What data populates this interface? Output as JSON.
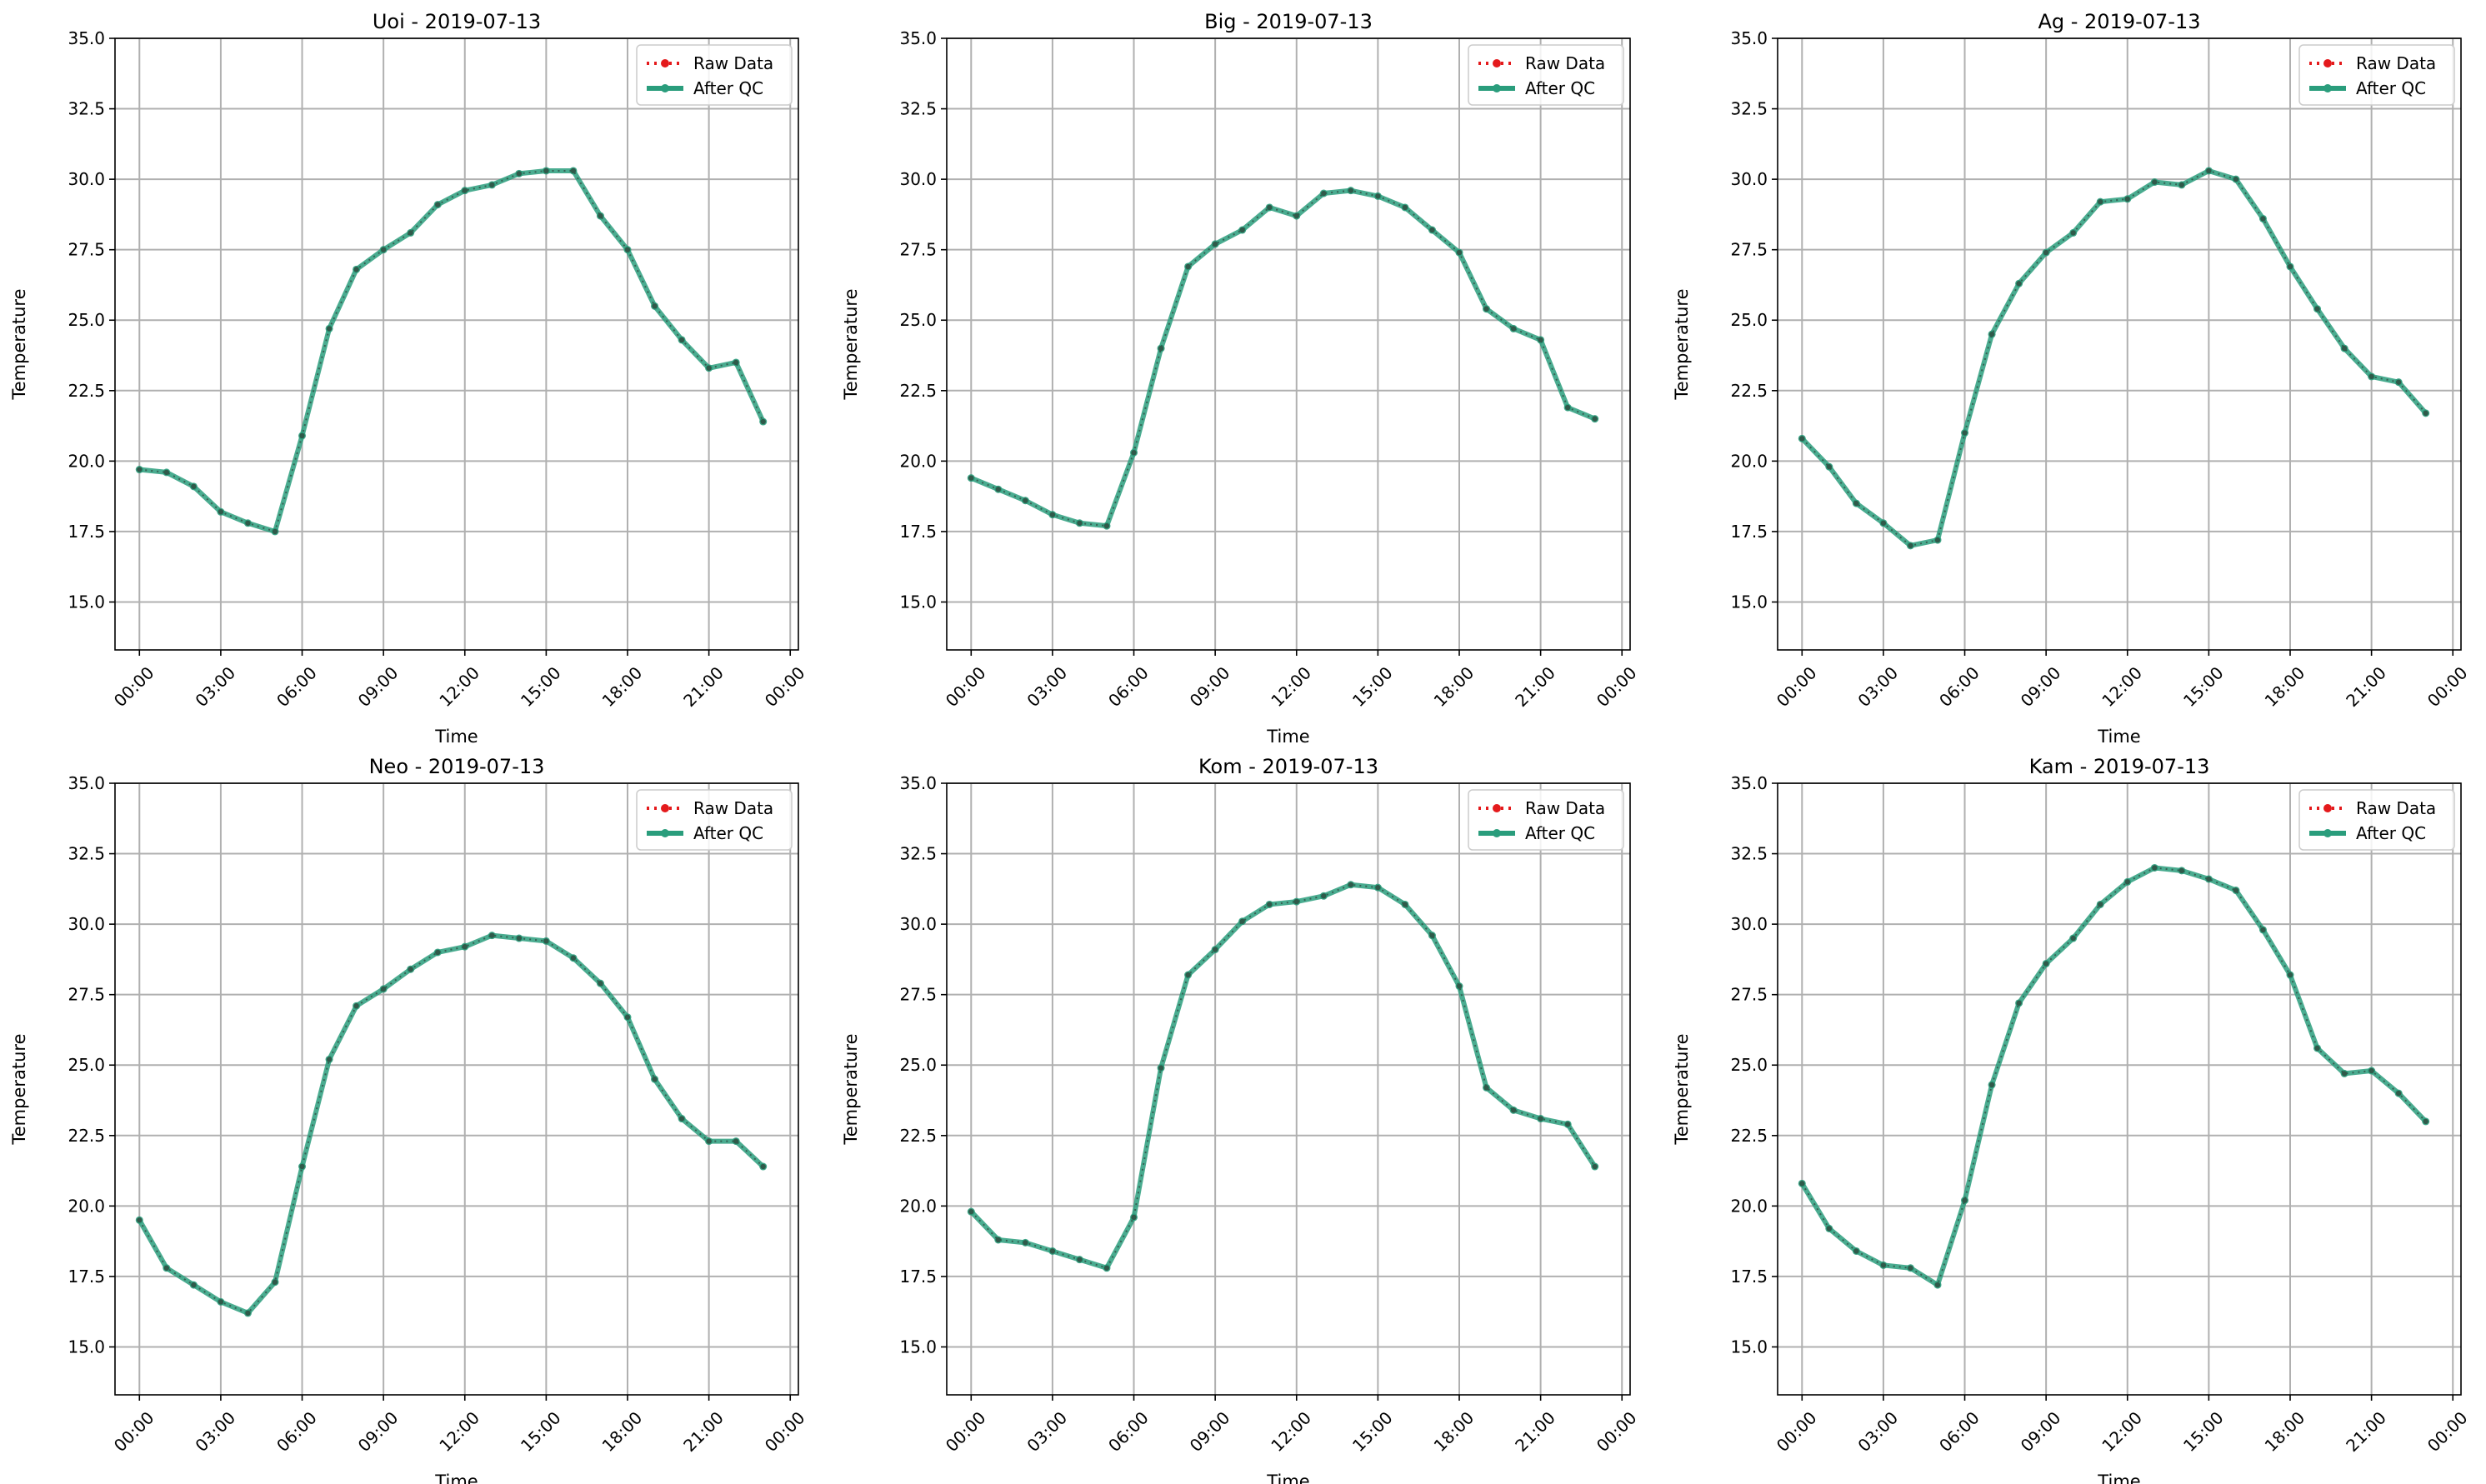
{
  "figure": {
    "legend_raw": "Raw Data",
    "legend_qc": "After QC",
    "raw_color": "#e41a1c",
    "qc_color": "#2a9d7c",
    "xlabel": "Time",
    "ylabel": "Temperature"
  },
  "chart_data": [
    {
      "type": "line",
      "title": "Uoi - 2019-07-13",
      "xlabel": "Time",
      "ylabel": "Temperature",
      "ylim": [
        13.3,
        35.0
      ],
      "yticks": [
        15.0,
        17.5,
        20.0,
        22.5,
        25.0,
        27.5,
        30.0,
        32.5,
        35.0
      ],
      "xticks": [
        "00:00",
        "03:00",
        "06:00",
        "09:00",
        "12:00",
        "15:00",
        "18:00",
        "21:00",
        "00:00"
      ],
      "grid": true,
      "legend": "top-right",
      "x_hours": [
        0,
        1,
        2,
        3,
        4,
        5,
        6,
        7,
        8,
        9,
        10,
        11,
        12,
        13,
        14,
        15,
        16,
        17,
        18,
        19,
        20,
        21,
        22,
        23
      ],
      "series": [
        {
          "name": "Raw Data",
          "values": [
            19.7,
            19.6,
            19.1,
            18.2,
            17.8,
            17.5,
            20.9,
            24.7,
            26.8,
            27.5,
            28.1,
            29.1,
            29.6,
            29.8,
            30.2,
            30.3,
            30.3,
            28.7,
            27.5,
            25.5,
            24.3,
            23.3,
            23.5,
            21.4
          ]
        },
        {
          "name": "After QC",
          "values": [
            19.7,
            19.6,
            19.1,
            18.2,
            17.8,
            17.5,
            20.9,
            24.7,
            26.8,
            27.5,
            28.1,
            29.1,
            29.6,
            29.8,
            30.2,
            30.3,
            30.3,
            28.7,
            27.5,
            25.5,
            24.3,
            23.3,
            23.5,
            21.4
          ]
        }
      ]
    },
    {
      "type": "line",
      "title": "Big - 2019-07-13",
      "xlabel": "Time",
      "ylabel": "Temperature",
      "ylim": [
        13.3,
        35.0
      ],
      "yticks": [
        15.0,
        17.5,
        20.0,
        22.5,
        25.0,
        27.5,
        30.0,
        32.5,
        35.0
      ],
      "xticks": [
        "00:00",
        "03:00",
        "06:00",
        "09:00",
        "12:00",
        "15:00",
        "18:00",
        "21:00",
        "00:00"
      ],
      "grid": true,
      "legend": "top-right",
      "x_hours": [
        0,
        1,
        2,
        3,
        4,
        5,
        6,
        7,
        8,
        9,
        10,
        11,
        12,
        13,
        14,
        15,
        16,
        17,
        18,
        19,
        20,
        21,
        22,
        23
      ],
      "series": [
        {
          "name": "Raw Data",
          "values": [
            19.4,
            19.0,
            18.6,
            18.1,
            17.8,
            17.7,
            20.3,
            24.0,
            26.9,
            27.7,
            28.2,
            29.0,
            28.7,
            29.5,
            29.6,
            29.4,
            29.0,
            28.2,
            27.4,
            25.4,
            24.7,
            24.3,
            21.9,
            21.5
          ]
        },
        {
          "name": "After QC",
          "values": [
            19.4,
            19.0,
            18.6,
            18.1,
            17.8,
            17.7,
            20.3,
            24.0,
            26.9,
            27.7,
            28.2,
            29.0,
            28.7,
            29.5,
            29.6,
            29.4,
            29.0,
            28.2,
            27.4,
            25.4,
            24.7,
            24.3,
            21.9,
            21.5
          ]
        }
      ]
    },
    {
      "type": "line",
      "title": "Ag - 2019-07-13",
      "xlabel": "Time",
      "ylabel": "Temperature",
      "ylim": [
        13.3,
        35.0
      ],
      "yticks": [
        15.0,
        17.5,
        20.0,
        22.5,
        25.0,
        27.5,
        30.0,
        32.5,
        35.0
      ],
      "xticks": [
        "00:00",
        "03:00",
        "06:00",
        "09:00",
        "12:00",
        "15:00",
        "18:00",
        "21:00",
        "00:00"
      ],
      "grid": true,
      "legend": "top-right",
      "x_hours": [
        0,
        1,
        2,
        3,
        4,
        5,
        6,
        7,
        8,
        9,
        10,
        11,
        12,
        13,
        14,
        15,
        16,
        17,
        18,
        19,
        20,
        21,
        22,
        23
      ],
      "series": [
        {
          "name": "Raw Data",
          "values": [
            20.8,
            19.8,
            18.5,
            17.8,
            17.0,
            17.2,
            21.0,
            24.5,
            26.3,
            27.4,
            28.1,
            29.2,
            29.3,
            29.9,
            29.8,
            30.3,
            30.0,
            28.6,
            26.9,
            25.4,
            24.0,
            23.0,
            22.8,
            21.7
          ]
        },
        {
          "name": "After QC",
          "values": [
            20.8,
            19.8,
            18.5,
            17.8,
            17.0,
            17.2,
            21.0,
            24.5,
            26.3,
            27.4,
            28.1,
            29.2,
            29.3,
            29.9,
            29.8,
            30.3,
            30.0,
            28.6,
            26.9,
            25.4,
            24.0,
            23.0,
            22.8,
            21.7
          ]
        }
      ]
    },
    {
      "type": "line",
      "title": "Neo - 2019-07-13",
      "xlabel": "Time",
      "ylabel": "Temperature",
      "ylim": [
        13.3,
        35.0
      ],
      "yticks": [
        15.0,
        17.5,
        20.0,
        22.5,
        25.0,
        27.5,
        30.0,
        32.5,
        35.0
      ],
      "xticks": [
        "00:00",
        "03:00",
        "06:00",
        "09:00",
        "12:00",
        "15:00",
        "18:00",
        "21:00",
        "00:00"
      ],
      "grid": true,
      "legend": "top-right",
      "x_hours": [
        0,
        1,
        2,
        3,
        4,
        5,
        6,
        7,
        8,
        9,
        10,
        11,
        12,
        13,
        14,
        15,
        16,
        17,
        18,
        19,
        20,
        21,
        22,
        23
      ],
      "series": [
        {
          "name": "Raw Data",
          "values": [
            19.5,
            17.8,
            17.2,
            16.6,
            16.2,
            17.3,
            21.4,
            25.2,
            27.1,
            27.7,
            28.4,
            29.0,
            29.2,
            29.6,
            29.5,
            29.4,
            28.8,
            27.9,
            26.7,
            24.5,
            23.1,
            22.3,
            22.3,
            21.4
          ]
        },
        {
          "name": "After QC",
          "values": [
            19.5,
            17.8,
            17.2,
            16.6,
            16.2,
            17.3,
            21.4,
            25.2,
            27.1,
            27.7,
            28.4,
            29.0,
            29.2,
            29.6,
            29.5,
            29.4,
            28.8,
            27.9,
            26.7,
            24.5,
            23.1,
            22.3,
            22.3,
            21.4
          ]
        }
      ]
    },
    {
      "type": "line",
      "title": "Kom - 2019-07-13",
      "xlabel": "Time",
      "ylabel": "Temperature",
      "ylim": [
        13.3,
        35.0
      ],
      "yticks": [
        15.0,
        17.5,
        20.0,
        22.5,
        25.0,
        27.5,
        30.0,
        32.5,
        35.0
      ],
      "xticks": [
        "00:00",
        "03:00",
        "06:00",
        "09:00",
        "12:00",
        "15:00",
        "18:00",
        "21:00",
        "00:00"
      ],
      "grid": true,
      "legend": "top-right",
      "x_hours": [
        0,
        1,
        2,
        3,
        4,
        5,
        6,
        7,
        8,
        9,
        10,
        11,
        12,
        13,
        14,
        15,
        16,
        17,
        18,
        19,
        20,
        21,
        22,
        23
      ],
      "series": [
        {
          "name": "Raw Data",
          "values": [
            19.8,
            18.8,
            18.7,
            18.4,
            18.1,
            17.8,
            19.6,
            24.9,
            28.2,
            29.1,
            30.1,
            30.7,
            30.8,
            31.0,
            31.4,
            31.3,
            30.7,
            29.6,
            27.8,
            24.2,
            23.4,
            23.1,
            22.9,
            21.4
          ]
        },
        {
          "name": "After QC",
          "values": [
            19.8,
            18.8,
            18.7,
            18.4,
            18.1,
            17.8,
            19.6,
            24.9,
            28.2,
            29.1,
            30.1,
            30.7,
            30.8,
            31.0,
            31.4,
            31.3,
            30.7,
            29.6,
            27.8,
            24.2,
            23.4,
            23.1,
            22.9,
            21.4
          ]
        }
      ]
    },
    {
      "type": "line",
      "title": "Kam - 2019-07-13",
      "xlabel": "Time",
      "ylabel": "Temperature",
      "ylim": [
        13.3,
        35.0
      ],
      "yticks": [
        15.0,
        17.5,
        20.0,
        22.5,
        25.0,
        27.5,
        30.0,
        32.5,
        35.0
      ],
      "xticks": [
        "00:00",
        "03:00",
        "06:00",
        "09:00",
        "12:00",
        "15:00",
        "18:00",
        "21:00",
        "00:00"
      ],
      "grid": true,
      "legend": "top-right",
      "x_hours": [
        0,
        1,
        2,
        3,
        4,
        5,
        6,
        7,
        8,
        9,
        10,
        11,
        12,
        13,
        14,
        15,
        16,
        17,
        18,
        19,
        20,
        21,
        22,
        23
      ],
      "series": [
        {
          "name": "Raw Data",
          "values": [
            20.8,
            19.2,
            18.4,
            17.9,
            17.8,
            17.2,
            20.2,
            24.3,
            27.2,
            28.6,
            29.5,
            30.7,
            31.5,
            32.0,
            31.9,
            31.6,
            31.2,
            29.8,
            28.2,
            25.6,
            24.7,
            24.8,
            24.0,
            23.0
          ]
        },
        {
          "name": "After QC",
          "values": [
            20.8,
            19.2,
            18.4,
            17.9,
            17.8,
            17.2,
            20.2,
            24.3,
            27.2,
            28.6,
            29.5,
            30.7,
            31.5,
            32.0,
            31.9,
            31.6,
            31.2,
            29.8,
            28.2,
            25.6,
            24.7,
            24.8,
            24.0,
            23.0
          ]
        }
      ]
    }
  ]
}
